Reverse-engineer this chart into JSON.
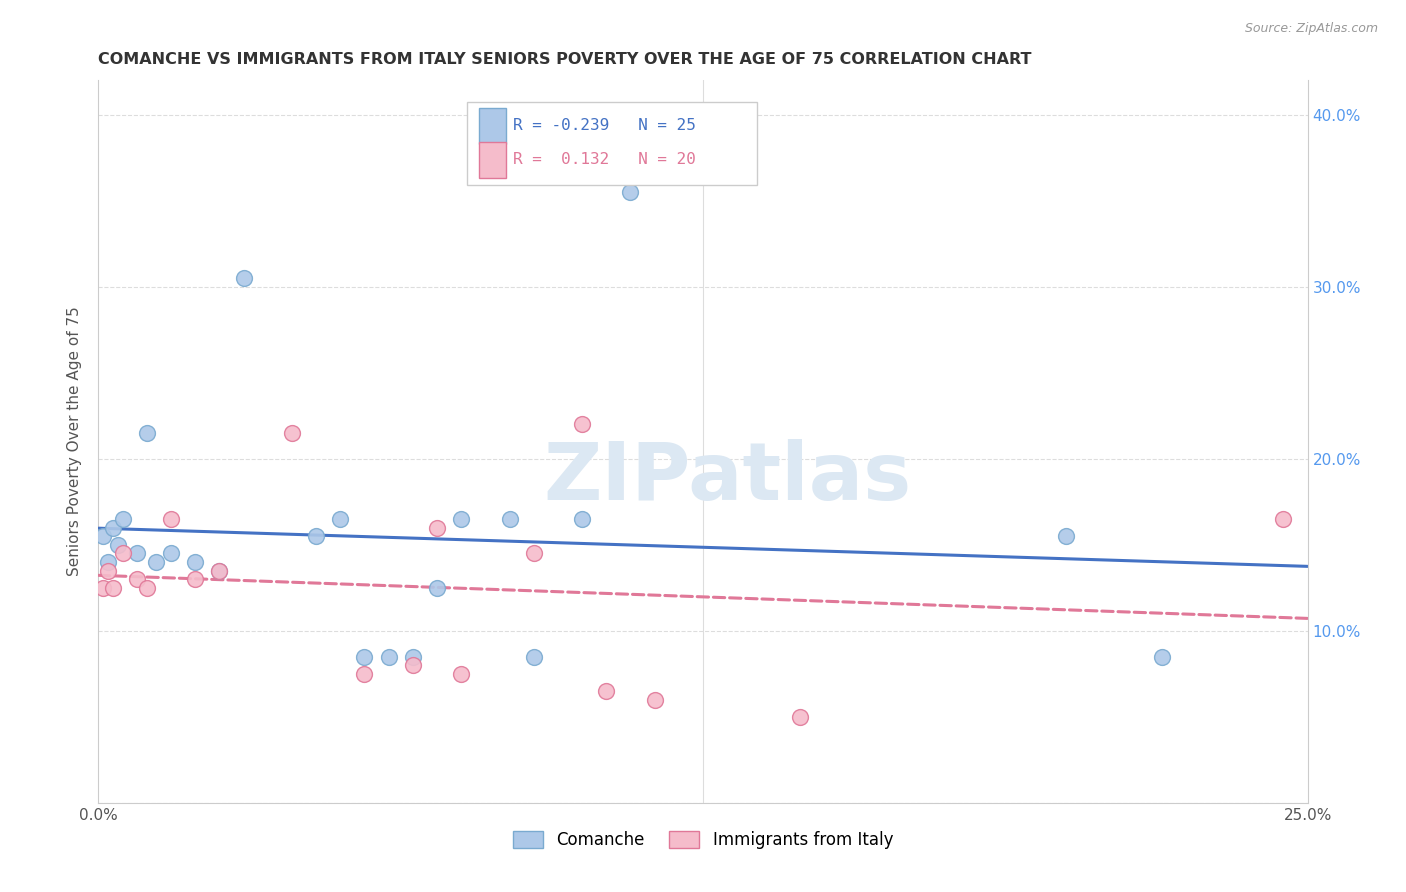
{
  "title": "COMANCHE VS IMMIGRANTS FROM ITALY SENIORS POVERTY OVER THE AGE OF 75 CORRELATION CHART",
  "source": "Source: ZipAtlas.com",
  "ylabel": "Seniors Poverty Over the Age of 75",
  "xlim": [
    0.0,
    0.25
  ],
  "ylim": [
    0.0,
    0.42
  ],
  "x_ticks": [
    0.0,
    0.05,
    0.1,
    0.15,
    0.2,
    0.25
  ],
  "y_ticks": [
    0.0,
    0.1,
    0.2,
    0.3,
    0.4
  ],
  "grid_color": "#dddddd",
  "background_color": "#ffffff",
  "comanche_color": "#adc8e8",
  "comanche_edge_color": "#7aaad0",
  "italy_color": "#f5bccb",
  "italy_edge_color": "#e07898",
  "comanche_R": -0.239,
  "comanche_N": 25,
  "italy_R": 0.132,
  "italy_N": 20,
  "comanche_line_color": "#4472c4",
  "italy_line_color": "#e07898",
  "comanche_x": [
    0.001,
    0.002,
    0.003,
    0.004,
    0.005,
    0.008,
    0.01,
    0.012,
    0.015,
    0.02,
    0.025,
    0.03,
    0.045,
    0.05,
    0.055,
    0.06,
    0.065,
    0.07,
    0.075,
    0.085,
    0.09,
    0.1,
    0.11,
    0.2,
    0.22
  ],
  "comanche_y": [
    0.155,
    0.14,
    0.16,
    0.15,
    0.165,
    0.145,
    0.215,
    0.14,
    0.145,
    0.14,
    0.135,
    0.305,
    0.155,
    0.165,
    0.085,
    0.085,
    0.085,
    0.125,
    0.165,
    0.165,
    0.085,
    0.165,
    0.355,
    0.155,
    0.085
  ],
  "italy_x": [
    0.001,
    0.002,
    0.003,
    0.005,
    0.008,
    0.01,
    0.015,
    0.02,
    0.025,
    0.04,
    0.055,
    0.065,
    0.07,
    0.075,
    0.09,
    0.1,
    0.105,
    0.115,
    0.145,
    0.245
  ],
  "italy_y": [
    0.125,
    0.135,
    0.125,
    0.145,
    0.13,
    0.125,
    0.165,
    0.13,
    0.135,
    0.215,
    0.075,
    0.08,
    0.16,
    0.075,
    0.145,
    0.22,
    0.065,
    0.06,
    0.05,
    0.165
  ],
  "watermark_text": "ZIPatlas",
  "watermark_color": "#dce8f3",
  "legend_box_color_comanche": "#adc8e8",
  "legend_box_color_italy": "#f5bccb",
  "legend_box_edge_comanche": "#7aaad0",
  "legend_box_edge_italy": "#e07898",
  "right_tick_color": "#5599ee"
}
